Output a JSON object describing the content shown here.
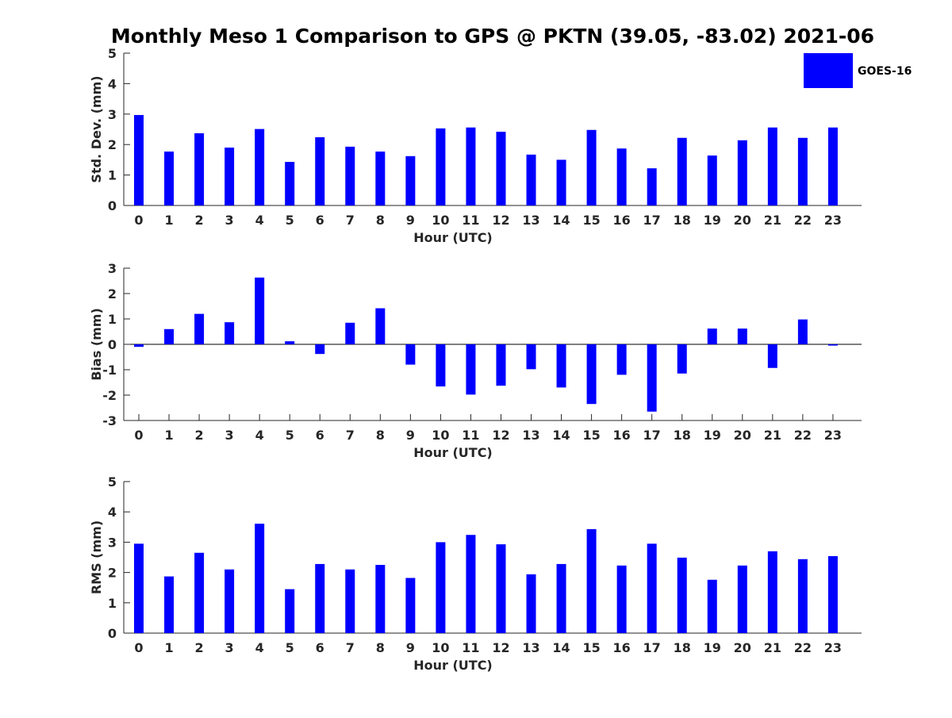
{
  "chart_data": {
    "title": "Monthly Meso 1 Comparison to GPS @ PKTN (39.05, -83.02) 2021-06",
    "legend": {
      "label": "GOES-16",
      "placement": "top-right",
      "color": "#0000ff"
    },
    "panels": [
      {
        "type": "bar",
        "ylabel": "Std. Dev. (mm)",
        "xlabel": "Hour (UTC)",
        "ylim": [
          0,
          5
        ],
        "yticks": [
          0,
          1,
          2,
          3,
          4,
          5
        ],
        "grid": false,
        "categories": [
          "0",
          "1",
          "2",
          "3",
          "4",
          "5",
          "6",
          "7",
          "8",
          "9",
          "10",
          "11",
          "12",
          "13",
          "14",
          "15",
          "16",
          "17",
          "18",
          "19",
          "20",
          "21",
          "22",
          "23"
        ],
        "series": [
          {
            "name": "GOES-16",
            "values": [
              2.97,
              1.77,
              2.37,
              1.9,
              2.51,
              1.43,
              2.24,
              1.93,
              1.77,
              1.62,
              2.53,
              2.56,
              2.42,
              1.67,
              1.5,
              2.48,
              1.87,
              1.22,
              2.22,
              1.64,
              2.14,
              2.56,
              2.22,
              2.56
            ]
          }
        ]
      },
      {
        "type": "bar",
        "ylabel": "Bias (mm)",
        "xlabel": "Hour (UTC)",
        "ylim": [
          -3,
          3
        ],
        "yticks": [
          -3,
          -2,
          -1,
          0,
          1,
          2,
          3
        ],
        "grid": false,
        "categories": [
          "0",
          "1",
          "2",
          "3",
          "4",
          "5",
          "6",
          "7",
          "8",
          "9",
          "10",
          "11",
          "12",
          "13",
          "14",
          "15",
          "16",
          "17",
          "18",
          "19",
          "20",
          "21",
          "22",
          "23"
        ],
        "series": [
          {
            "name": "GOES-16",
            "values": [
              -0.1,
              0.6,
              1.2,
              0.87,
              2.63,
              0.12,
              -0.38,
              0.85,
              1.42,
              -0.8,
              -1.66,
              -1.98,
              -1.63,
              -0.98,
              -1.7,
              -2.35,
              -1.2,
              -2.65,
              -1.15,
              0.62,
              0.62,
              -0.93,
              0.98,
              -0.05
            ]
          }
        ]
      },
      {
        "type": "bar",
        "ylabel": "RMS (mm)",
        "xlabel": "Hour (UTC)",
        "ylim": [
          0,
          5
        ],
        "yticks": [
          0,
          1,
          2,
          3,
          4,
          5
        ],
        "grid": false,
        "categories": [
          "0",
          "1",
          "2",
          "3",
          "4",
          "5",
          "6",
          "7",
          "8",
          "9",
          "10",
          "11",
          "12",
          "13",
          "14",
          "15",
          "16",
          "17",
          "18",
          "19",
          "20",
          "21",
          "22",
          "23"
        ],
        "series": [
          {
            "name": "GOES-16",
            "values": [
              2.95,
              1.87,
              2.65,
              2.1,
              3.61,
              1.45,
              2.28,
              2.1,
              2.25,
              1.82,
              3.0,
              3.24,
              2.93,
              1.94,
              2.28,
              3.43,
              2.23,
              2.95,
              2.49,
              1.76,
              2.23,
              2.7,
              2.44,
              2.54
            ]
          }
        ]
      }
    ]
  }
}
